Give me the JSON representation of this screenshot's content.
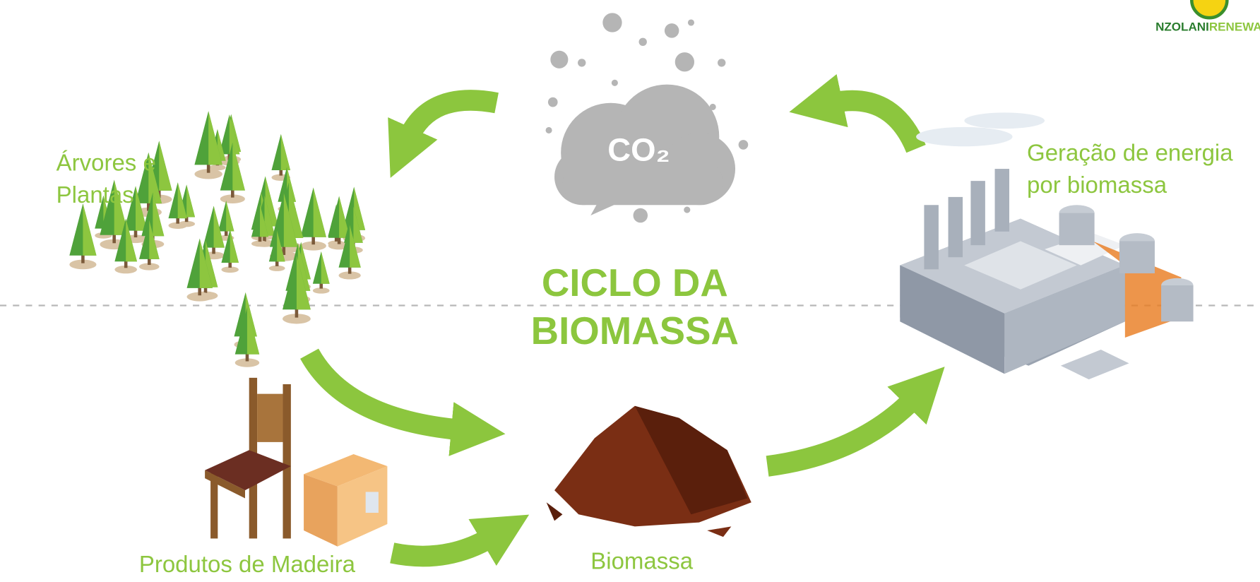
{
  "title": {
    "lines": [
      "CICLO DA",
      "BIOMASSA"
    ]
  },
  "cloud": {
    "label": "CO₂"
  },
  "nodes": [
    {
      "label": [
        "Árvores e",
        "Plantas"
      ]
    },
    {
      "label": [
        "Geração de energia",
        "por biomassa"
      ]
    },
    {
      "label": [
        "Produtos de Madeira"
      ]
    },
    {
      "label": [
        "Biomassa"
      ]
    }
  ],
  "logo": {
    "parts": [
      "NZOLANI",
      "RENEWA"
    ]
  }
}
